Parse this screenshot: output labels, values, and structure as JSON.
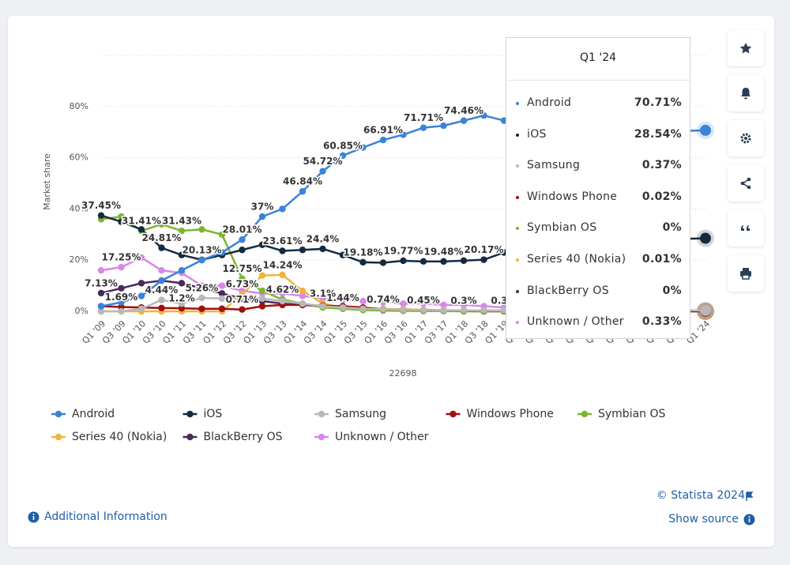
{
  "chart_data": {
    "type": "line",
    "y_label": "Market share",
    "x_label": "22698",
    "categories": [
      "Q1 '09",
      "Q3 '09",
      "Q1 '10",
      "Q3 '10",
      "Q1 '11",
      "Q3 '11",
      "Q1 '12",
      "Q3 '12",
      "Q1 '13",
      "Q3 '13",
      "Q1 '14",
      "Q3 '14",
      "Q1 '15",
      "Q3 '15",
      "Q1 '16",
      "Q3 '16",
      "Q1 '17",
      "Q3 '17",
      "Q1 '18",
      "Q3 '18",
      "Q1 '19",
      "Q3 '19",
      "Q1 '20",
      "Q3 '20",
      "Q1 '21",
      "Q3 '21",
      "Q1 '22",
      "Q3 '22",
      "Q1 '23",
      "Q3 '23",
      "Q1 '24"
    ],
    "ylim": [
      0,
      100
    ],
    "yticks": [
      {
        "value": 0,
        "label": "0%"
      },
      {
        "value": 20,
        "label": "20%"
      },
      {
        "value": 40,
        "label": "40%"
      },
      {
        "value": 60,
        "label": "60%"
      },
      {
        "value": 80,
        "label": "80%"
      }
    ],
    "grid": true,
    "series": [
      {
        "name": "Android",
        "color": "#3a83d8",
        "values": [
          2,
          3.5,
          6,
          12,
          16,
          20,
          23,
          28.01,
          37,
          40,
          46.84,
          54.72,
          60.85,
          64,
          66.91,
          69,
          71.71,
          72.5,
          74.46,
          76.5,
          74.5,
          75,
          72.5,
          73,
          72,
          72.5,
          71,
          71.5,
          71,
          70.5,
          70.71
        ],
        "value_labels": [
          null,
          null,
          null,
          null,
          null,
          null,
          null,
          "28.01%",
          "37%",
          null,
          "46.84%",
          "54.72%",
          "60.85%",
          null,
          "66.91%",
          null,
          "71.71%",
          null,
          "74.46%",
          null,
          null,
          null,
          null,
          null,
          null,
          null,
          null,
          null,
          null,
          null,
          "70.71%"
        ]
      },
      {
        "name": "iOS",
        "color": "#142b3f",
        "values": [
          37.45,
          35,
          32,
          24.81,
          22,
          20.13,
          22,
          24,
          26,
          23.61,
          24,
          24.4,
          22,
          19.18,
          19,
          19.77,
          19.5,
          19.48,
          19.8,
          20.17,
          23,
          24,
          25,
          26,
          27,
          27.5,
          27,
          28,
          28.5,
          28.3,
          28.54
        ],
        "value_labels": [
          "37.45%",
          null,
          null,
          "24.81%",
          null,
          "20.13%",
          null,
          null,
          null,
          "23.61%",
          null,
          "24.4%",
          null,
          "19.18%",
          null,
          "19.77%",
          null,
          "19.48%",
          null,
          "20.17%",
          null,
          null,
          null,
          null,
          null,
          null,
          null,
          null,
          null,
          null,
          "28.54%"
        ]
      },
      {
        "name": "Samsung",
        "color": "#b8b8b8",
        "values": [
          0,
          0,
          1,
          4.44,
          3,
          5.26,
          5,
          5.5,
          5,
          4,
          3,
          2,
          1.5,
          1,
          0.8,
          0.6,
          0.5,
          0.4,
          0.4,
          0.4,
          0.4,
          0.4,
          0.4,
          0.4,
          0.4,
          0.4,
          0.4,
          0.4,
          0.4,
          0.37,
          0.37
        ],
        "value_labels": [
          null,
          null,
          null,
          "4.44%",
          null,
          "5.26%",
          null,
          null,
          null,
          null,
          null,
          null,
          null,
          null,
          null,
          null,
          null,
          null,
          null,
          null,
          null,
          null,
          null,
          null,
          null,
          null,
          null,
          null,
          null,
          null,
          "0.37%"
        ]
      },
      {
        "name": "Windows Phone",
        "color": "#9e1010",
        "values": [
          2,
          1.69,
          1.5,
          1.3,
          1.2,
          1,
          1,
          0.71,
          2,
          2.5,
          2.5,
          2.2,
          2,
          1.5,
          0.74,
          0.6,
          0.45,
          0.35,
          0.3,
          0.3,
          0.3,
          0.2,
          0.1,
          0.1,
          0.05,
          0.05,
          0.03,
          0.03,
          0.02,
          0.02,
          0.02
        ],
        "value_labels": [
          null,
          "1.69%",
          null,
          null,
          "1.2%",
          null,
          null,
          "0.71%",
          null,
          null,
          null,
          null,
          null,
          null,
          "0.74%",
          null,
          "0.45%",
          null,
          "0.3%",
          null,
          "0.3%",
          null,
          null,
          null,
          null,
          null,
          null,
          null,
          null,
          null,
          "0.02%"
        ]
      },
      {
        "name": "Symbian OS",
        "color": "#7cb52f",
        "values": [
          36,
          37,
          31.41,
          34,
          31.43,
          32,
          30,
          12.75,
          8,
          4.62,
          3,
          1.5,
          1,
          0.5,
          0.3,
          0.2,
          0.1,
          0.1,
          0,
          0,
          0,
          0,
          0,
          0,
          0,
          0,
          0,
          0,
          0,
          0,
          0
        ],
        "value_labels": [
          null,
          null,
          "31.41%",
          null,
          "31.43%",
          null,
          null,
          "12.75%",
          null,
          "4.62%",
          null,
          null,
          null,
          null,
          null,
          null,
          null,
          null,
          null,
          null,
          null,
          null,
          null,
          null,
          null,
          null,
          null,
          null,
          null,
          null,
          "0%"
        ]
      },
      {
        "name": "Series 40 (Nokia)",
        "color": "#efb43a",
        "values": [
          0,
          0,
          0,
          0,
          0,
          0,
          0,
          6.73,
          14,
          14.24,
          8,
          3.1,
          1.44,
          1.2,
          1,
          0.8,
          0.6,
          0.5,
          0.4,
          0.3,
          0.2,
          0.1,
          0.1,
          0.05,
          0.05,
          0.03,
          0.02,
          0.02,
          0.01,
          0.01,
          0.01
        ],
        "value_labels": [
          null,
          null,
          null,
          null,
          null,
          null,
          null,
          "6.73%",
          null,
          "14.24%",
          null,
          "3.1%",
          "1.44%",
          null,
          null,
          null,
          null,
          null,
          null,
          null,
          null,
          null,
          null,
          null,
          null,
          null,
          null,
          null,
          null,
          null,
          "0.01%"
        ]
      },
      {
        "name": "BlackBerry OS",
        "color": "#4a2a5c",
        "values": [
          7.13,
          9,
          11,
          12,
          11,
          9,
          7,
          5,
          4,
          3,
          2.5,
          2,
          1.5,
          1,
          0.7,
          0.5,
          0.3,
          0.2,
          0.1,
          0,
          0,
          0,
          0,
          0,
          0,
          0,
          0,
          0,
          0,
          0,
          0
        ],
        "value_labels": [
          "7.13%",
          null,
          null,
          null,
          null,
          null,
          null,
          null,
          null,
          null,
          null,
          null,
          null,
          null,
          null,
          null,
          null,
          null,
          null,
          null,
          null,
          null,
          null,
          null,
          null,
          null,
          null,
          null,
          null,
          null,
          "0%"
        ]
      },
      {
        "name": "Unknown / Other",
        "color": "#d689e6",
        "values": [
          16,
          17.25,
          21,
          16,
          15,
          10,
          10,
          8,
          7,
          7,
          6,
          5,
          4.5,
          4,
          3.5,
          3,
          3,
          2.5,
          2.5,
          2,
          1.5,
          1.2,
          1,
          0.8,
          0.6,
          0.5,
          0.5,
          0.4,
          0.4,
          0.35,
          0.33
        ],
        "value_labels": [
          null,
          "17.25%",
          null,
          null,
          null,
          null,
          null,
          null,
          null,
          null,
          null,
          null,
          null,
          null,
          null,
          null,
          null,
          null,
          null,
          null,
          null,
          null,
          null,
          null,
          null,
          null,
          null,
          null,
          null,
          null,
          "0.33%"
        ]
      }
    ]
  },
  "footer": {
    "copyright": "© Statista 2024",
    "additional_info": "Additional Information",
    "show_source": "Show source"
  }
}
